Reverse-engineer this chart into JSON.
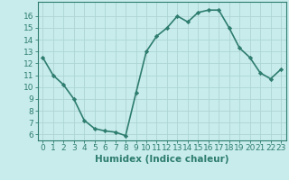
{
  "x": [
    0,
    1,
    2,
    3,
    4,
    5,
    6,
    7,
    8,
    9,
    10,
    11,
    12,
    13,
    14,
    15,
    16,
    17,
    18,
    19,
    20,
    21,
    22,
    23
  ],
  "y": [
    12.5,
    11.0,
    10.2,
    9.0,
    7.2,
    6.5,
    6.3,
    6.2,
    5.9,
    9.5,
    13.0,
    14.3,
    15.0,
    16.0,
    15.5,
    16.3,
    16.5,
    16.5,
    15.0,
    13.3,
    12.5,
    11.2,
    10.7,
    11.5
  ],
  "line_color": "#2e7d6e",
  "marker": "D",
  "marker_size": 2.2,
  "bg_color": "#c8ecec",
  "grid_color": "#aed4d4",
  "xlabel": "Humidex (Indice chaleur)",
  "ylim": [
    5.5,
    17.2
  ],
  "xlim": [
    -0.5,
    23.5
  ],
  "yticks": [
    6,
    7,
    8,
    9,
    10,
    11,
    12,
    13,
    14,
    15,
    16
  ],
  "xticks": [
    0,
    1,
    2,
    3,
    4,
    5,
    6,
    7,
    8,
    9,
    10,
    11,
    12,
    13,
    14,
    15,
    16,
    17,
    18,
    19,
    20,
    21,
    22,
    23
  ],
  "xlabel_fontsize": 7.5,
  "tick_fontsize": 6.5,
  "line_width": 1.2,
  "tick_color": "#2e7d6e",
  "spine_color": "#2e7d6e"
}
